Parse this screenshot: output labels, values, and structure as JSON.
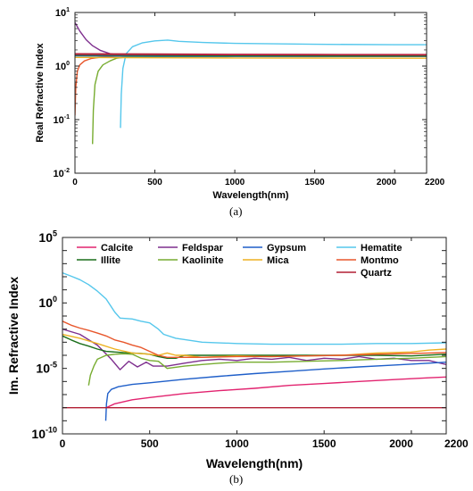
{
  "chart_data": [
    {
      "panel": "(a)",
      "type": "line",
      "title": "",
      "xlabel": "Wavelength(nm)",
      "ylabel": "Real Refractive Index",
      "xlim": [
        0,
        2200
      ],
      "ylim": [
        0.01,
        10
      ],
      "yscale": "log",
      "grid": false,
      "xticks": [
        0,
        500,
        1000,
        1500,
        2000,
        2200
      ],
      "xtick_labels": [
        "0",
        "500",
        "1000",
        "1500",
        "2000",
        "2200"
      ],
      "yticks": [
        0.01,
        0.1,
        1,
        10
      ],
      "ytick_labels": [
        [
          "10",
          "-2"
        ],
        [
          "10",
          "-1"
        ],
        [
          "10",
          "0"
        ],
        [
          "10",
          "1"
        ]
      ],
      "series": [
        {
          "color": "#55c7ec",
          "x": [
            285,
            290,
            300,
            320,
            360,
            420,
            500,
            580,
            650,
            800,
            1000,
            1500,
            2000,
            2200
          ],
          "y": [
            0.07,
            0.3,
            0.9,
            1.7,
            2.3,
            2.7,
            2.95,
            3.05,
            2.9,
            2.75,
            2.65,
            2.55,
            2.5,
            2.5
          ]
        },
        {
          "color": "#7e2f8e",
          "x": [
            0,
            30,
            70,
            110,
            160,
            220,
            280,
            350,
            500,
            1000,
            1500,
            2200
          ],
          "y": [
            6.5,
            4.5,
            3.1,
            2.4,
            1.95,
            1.7,
            1.6,
            1.55,
            1.55,
            1.55,
            1.55,
            1.55
          ]
        },
        {
          "color": "#e8572c",
          "x": [
            0,
            5,
            15,
            30,
            60,
            100,
            150,
            200,
            250,
            300,
            500,
            1000,
            2200
          ],
          "y": [
            0.12,
            0.4,
            0.8,
            1.05,
            1.25,
            1.38,
            1.45,
            1.5,
            1.52,
            1.53,
            1.53,
            1.53,
            1.52
          ]
        },
        {
          "color": "#77ac30",
          "x": [
            110,
            115,
            125,
            145,
            175,
            220,
            260,
            300,
            500,
            1000,
            2200
          ],
          "y": [
            0.035,
            0.15,
            0.45,
            0.8,
            1.05,
            1.25,
            1.4,
            1.45,
            1.5,
            1.52,
            1.52
          ]
        },
        {
          "color": "#1f5fc9",
          "x": [
            0,
            500,
            1000,
            1500,
            2200
          ],
          "y": [
            1.55,
            1.53,
            1.52,
            1.52,
            1.52
          ]
        },
        {
          "color": "#edb120",
          "x": [
            0,
            500,
            1000,
            1500,
            2200
          ],
          "y": [
            1.45,
            1.43,
            1.42,
            1.41,
            1.4
          ]
        },
        {
          "color": "#1a6e1a",
          "x": [
            0,
            500,
            1000,
            1500,
            2200
          ],
          "y": [
            1.6,
            1.58,
            1.56,
            1.55,
            1.54
          ]
        },
        {
          "color": "#e2236f",
          "x": [
            0,
            500,
            1000,
            1500,
            2200
          ],
          "y": [
            1.66,
            1.64,
            1.63,
            1.62,
            1.61
          ]
        },
        {
          "color": "#b21e33",
          "x": [
            0,
            500,
            1000,
            1500,
            2200
          ],
          "y": [
            1.7,
            1.68,
            1.66,
            1.65,
            1.64
          ]
        }
      ]
    },
    {
      "panel": "(b)",
      "type": "line",
      "title": "",
      "xlabel": "Wavelength(nm)",
      "ylabel": "Im. Refractive Index",
      "xlim": [
        0,
        2200
      ],
      "ylim": [
        1e-10,
        100000
      ],
      "yscale": "log",
      "grid": false,
      "legend_position": "top",
      "xticks": [
        0,
        500,
        1000,
        1500,
        2000,
        2200
      ],
      "xtick_labels": [
        "0",
        "500",
        "1000",
        "1500",
        "2000",
        "2200"
      ],
      "yticks": [
        1e-10,
        1e-05,
        1,
        100000
      ],
      "ytick_labels": [
        [
          "10",
          "-10"
        ],
        [
          "10",
          "-5"
        ],
        [
          "10",
          "0"
        ],
        [
          "10",
          "5"
        ]
      ],
      "series": [
        {
          "name": "Calcite",
          "color": "#e2236f",
          "x": [
            250,
            300,
            400,
            500,
            700,
            900,
            1100,
            1300,
            1500,
            1700,
            1900,
            2100,
            2200
          ],
          "y": [
            1e-08,
            2e-08,
            4e-08,
            6e-08,
            1.2e-07,
            2e-07,
            3e-07,
            5e-07,
            7e-07,
            1e-06,
            1.4e-06,
            1.9e-06,
            2.2e-06
          ]
        },
        {
          "name": "Feldspar",
          "color": "#7e2f8e",
          "x": [
            0,
            100,
            200,
            280,
            330,
            380,
            430,
            480,
            520,
            600,
            700,
            800,
            900,
            1000,
            1100,
            1200,
            1300,
            1400,
            1500,
            1600,
            1700,
            1800,
            1900,
            2000,
            2100,
            2200
          ],
          "y": [
            0.01,
            0.004,
            0.0006,
            5e-05,
            8e-06,
            3.5e-05,
            1.3e-05,
            3e-05,
            1.5e-05,
            1.5e-05,
            2.5e-05,
            4e-05,
            5e-05,
            4e-05,
            6e-05,
            5e-05,
            7e-05,
            4e-05,
            6e-05,
            5e-05,
            8e-05,
            5e-05,
            6e-05,
            4e-05,
            4e-05,
            2e-05
          ]
        },
        {
          "name": "Gypsum",
          "color": "#1f5fc9",
          "x": [
            248,
            252,
            260,
            280,
            320,
            400,
            500,
            700,
            900,
            1100,
            1300,
            1500,
            1700,
            1900,
            2100,
            2200
          ],
          "y": [
            1e-09,
            2e-08,
            1.2e-07,
            2.5e-07,
            4e-07,
            6e-07,
            8e-07,
            1.5e-06,
            2.5e-06,
            4e-06,
            6e-06,
            9e-06,
            1.3e-05,
            1.8e-05,
            2.5e-05,
            3e-05
          ]
        },
        {
          "name": "Hematite",
          "color": "#55c7ec",
          "x": [
            0,
            50,
            100,
            150,
            200,
            250,
            300,
            330,
            400,
            450,
            500,
            550,
            580,
            650,
            800,
            1000,
            1200,
            1400,
            1600,
            1800,
            2000,
            2200
          ],
          "y": [
            200,
            110,
            60,
            25,
            8,
            2,
            0.2,
            0.07,
            0.06,
            0.04,
            0.03,
            0.01,
            0.004,
            0.002,
            0.001,
            0.0008,
            0.0007,
            0.0007,
            0.0007,
            0.0008,
            0.0008,
            0.0009
          ]
        },
        {
          "name": "Illite",
          "color": "#1a6e1a",
          "x": [
            0,
            50,
            100,
            150,
            200,
            250,
            300,
            350,
            400,
            450,
            500,
            550,
            600,
            650,
            700,
            800,
            1000,
            1200,
            1400,
            1600,
            1800,
            2000,
            2200
          ],
          "y": [
            0.003,
            0.0015,
            0.0008,
            0.0005,
            0.0003,
            0.0002,
            0.00018,
            0.00016,
            0.00015,
            0.00014,
            0.00012,
            8e-05,
            6e-05,
            6e-05,
            0.0001,
            0.0001,
            0.0001,
            0.0001,
            0.0001,
            0.0001,
            0.0001,
            9e-05,
            0.00012
          ]
        },
        {
          "name": "Kaolinite",
          "color": "#77ac30",
          "x": [
            150,
            160,
            180,
            200,
            250,
            300,
            350,
            400,
            450,
            500,
            550,
            600,
            700,
            800,
            900,
            1000,
            1200,
            1400,
            1600,
            1800,
            2000,
            2200
          ],
          "y": [
            5e-07,
            3e-06,
            1.5e-05,
            5e-05,
            0.0001,
            0.00012,
            0.00013,
            0.00012,
            6e-05,
            4e-05,
            3.5e-05,
            1e-05,
            1.5e-05,
            2e-05,
            2.5e-05,
            3e-05,
            3e-05,
            3.5e-05,
            4e-05,
            5e-05,
            6e-05,
            8e-05
          ]
        },
        {
          "name": "Mica",
          "color": "#edb120",
          "x": [
            0,
            100,
            200,
            300,
            400,
            500,
            550,
            600,
            650,
            700,
            800,
            900,
            1000,
            1200,
            1400,
            1600,
            1800,
            2000,
            2100,
            2200
          ],
          "y": [
            0.004,
            0.002,
            0.0008,
            0.0003,
            0.00015,
            0.00012,
            0.0001,
            0.00015,
            0.0001,
            0.0001,
            7e-05,
            8e-05,
            9e-05,
            8e-05,
            9e-05,
            0.0001,
            0.00015,
            0.00018,
            0.00025,
            0.0003
          ]
        },
        {
          "name": "Montmo",
          "color": "#e8572c",
          "x": [
            0,
            50,
            100,
            150,
            200,
            250,
            300,
            350,
            400,
            450,
            500,
            550,
            600,
            700,
            800,
            1000,
            1200,
            1400,
            1600,
            1800,
            2000,
            2200
          ],
          "y": [
            0.04,
            0.02,
            0.012,
            0.008,
            0.005,
            0.003,
            0.0015,
            0.001,
            0.0006,
            0.0004,
            0.0002,
            0.0001,
            7e-05,
            7e-05,
            7e-05,
            8e-05,
            8e-05,
            9e-05,
            0.0001,
            0.00012,
            0.00014,
            0.00016
          ]
        },
        {
          "name": "Quartz",
          "color": "#b21e33",
          "x": [
            0,
            2200
          ],
          "y": [
            1e-08,
            1e-08
          ]
        }
      ]
    }
  ],
  "captions": [
    "(a)",
    "(b)"
  ]
}
